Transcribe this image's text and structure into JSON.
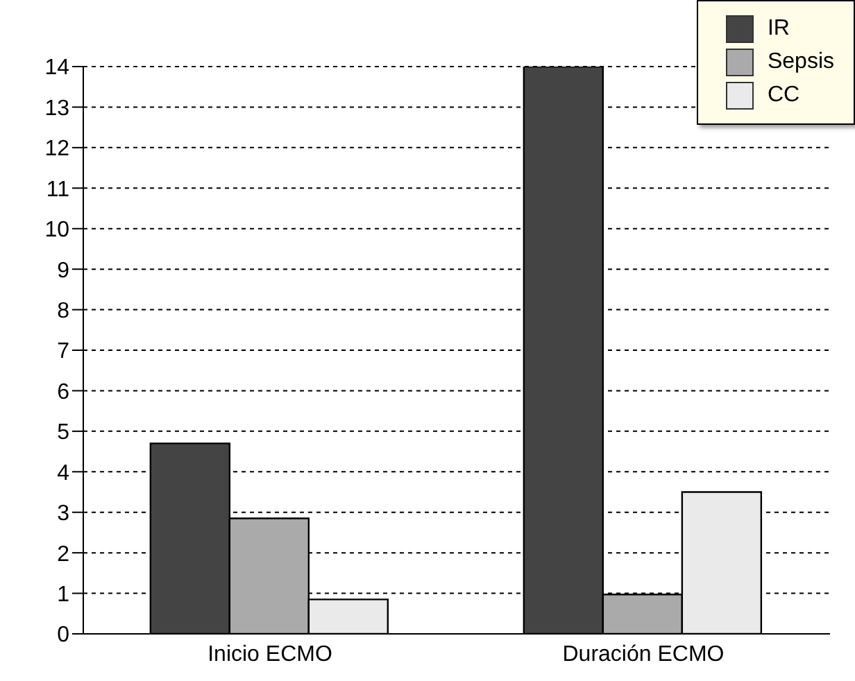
{
  "chart_data": {
    "type": "bar",
    "categories": [
      "Inicio ECMO",
      "Duración ECMO"
    ],
    "series": [
      {
        "name": "IR",
        "color": "#444444",
        "values": [
          4.7,
          14
        ]
      },
      {
        "name": "Sepsis",
        "color": "#aaaaaa",
        "values": [
          2.85,
          0.97
        ]
      },
      {
        "name": "CC",
        "color": "#eaeaea",
        "values": [
          0.85,
          3.5
        ]
      }
    ],
    "ylim": [
      0,
      14
    ],
    "yticks": [
      0,
      1,
      2,
      3,
      4,
      5,
      6,
      7,
      8,
      9,
      10,
      11,
      12,
      13,
      14
    ],
    "grid": "y",
    "legend": "top right"
  }
}
